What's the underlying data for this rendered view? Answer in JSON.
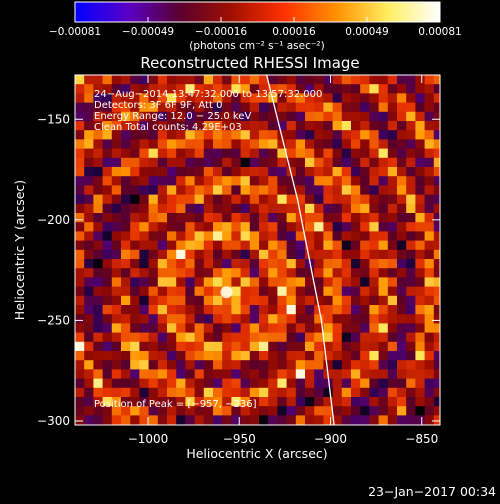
{
  "chart_data": {
    "type": "heatmap",
    "title": "Reconstructed RHESSI Image",
    "xlabel": "Heliocentric X (arcsec)",
    "ylabel": "Heliocentric Y (arcsec)",
    "xlim": [
      -1040,
      -840
    ],
    "ylim": [
      -302,
      -128
    ],
    "x_ticks": [
      -1000,
      -950,
      -900,
      -850
    ],
    "x_tick_labels": [
      "−1000",
      "−950",
      "−900",
      "−850"
    ],
    "y_ticks": [
      -150,
      -200,
      -250,
      -300
    ],
    "y_tick_labels": [
      "−150",
      "−200",
      "−250",
      "−300"
    ],
    "colorbar": {
      "range": [
        -0.00081,
        0.00081
      ],
      "tick_labels": [
        "−0.00081",
        "−0.00049",
        "−0.00016",
        "0.00016",
        "0.00049",
        "0.00081"
      ],
      "unit_label": "(photons cm⁻² s⁻¹ asec⁻²)",
      "colors": [
        "#0000ff",
        "#5a00c8",
        "#5a0030",
        "#a01000",
        "#ff3000",
        "#ff9000",
        "#ffee60",
        "#ffffff"
      ]
    },
    "annotations": [
      "24−Aug−2014 13:47:32.000 to 13:57:32.000",
      "Detectors: 3F 6F 9F, Att 0",
      "Energy Range: 12.0 − 25.0 keV",
      "Clean    Total counts: 4.29E+03"
    ],
    "peak_label": "Position of Peak = [−957, −236]",
    "peak": {
      "x": -957,
      "y": -236
    },
    "limb": [
      {
        "x": -935,
        "y": -128
      },
      {
        "x": -918,
        "y": -190
      },
      {
        "x": -905,
        "y": -250
      },
      {
        "x": -898,
        "y": -302
      }
    ],
    "grid": false,
    "legend": "none"
  },
  "footer": {
    "timestamp": "23−Jan−2017 00:34"
  }
}
